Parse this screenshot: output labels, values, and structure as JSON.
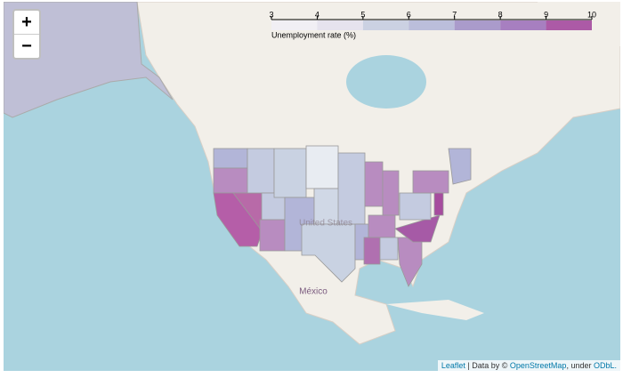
{
  "legend": {
    "title": "Unemployment rate (%)",
    "ticks": [
      3,
      4,
      5,
      6,
      7,
      8,
      9,
      10
    ],
    "colors": [
      "#f1eef6",
      "#e4e0ee",
      "#c4cbe0",
      "#b2b5d8",
      "#9e8cc6",
      "#9a6bb8",
      "#a0409a"
    ]
  },
  "zoom": {
    "zoom_in": "+",
    "zoom_out": "−"
  },
  "labels": {
    "country_1": "United States",
    "country_2": "México"
  },
  "attribution": {
    "leaflet": "Leaflet",
    "data_by": "| Data by ©",
    "osm": "OpenStreetMap",
    "under": ", under",
    "odbl": "ODbL."
  }
}
